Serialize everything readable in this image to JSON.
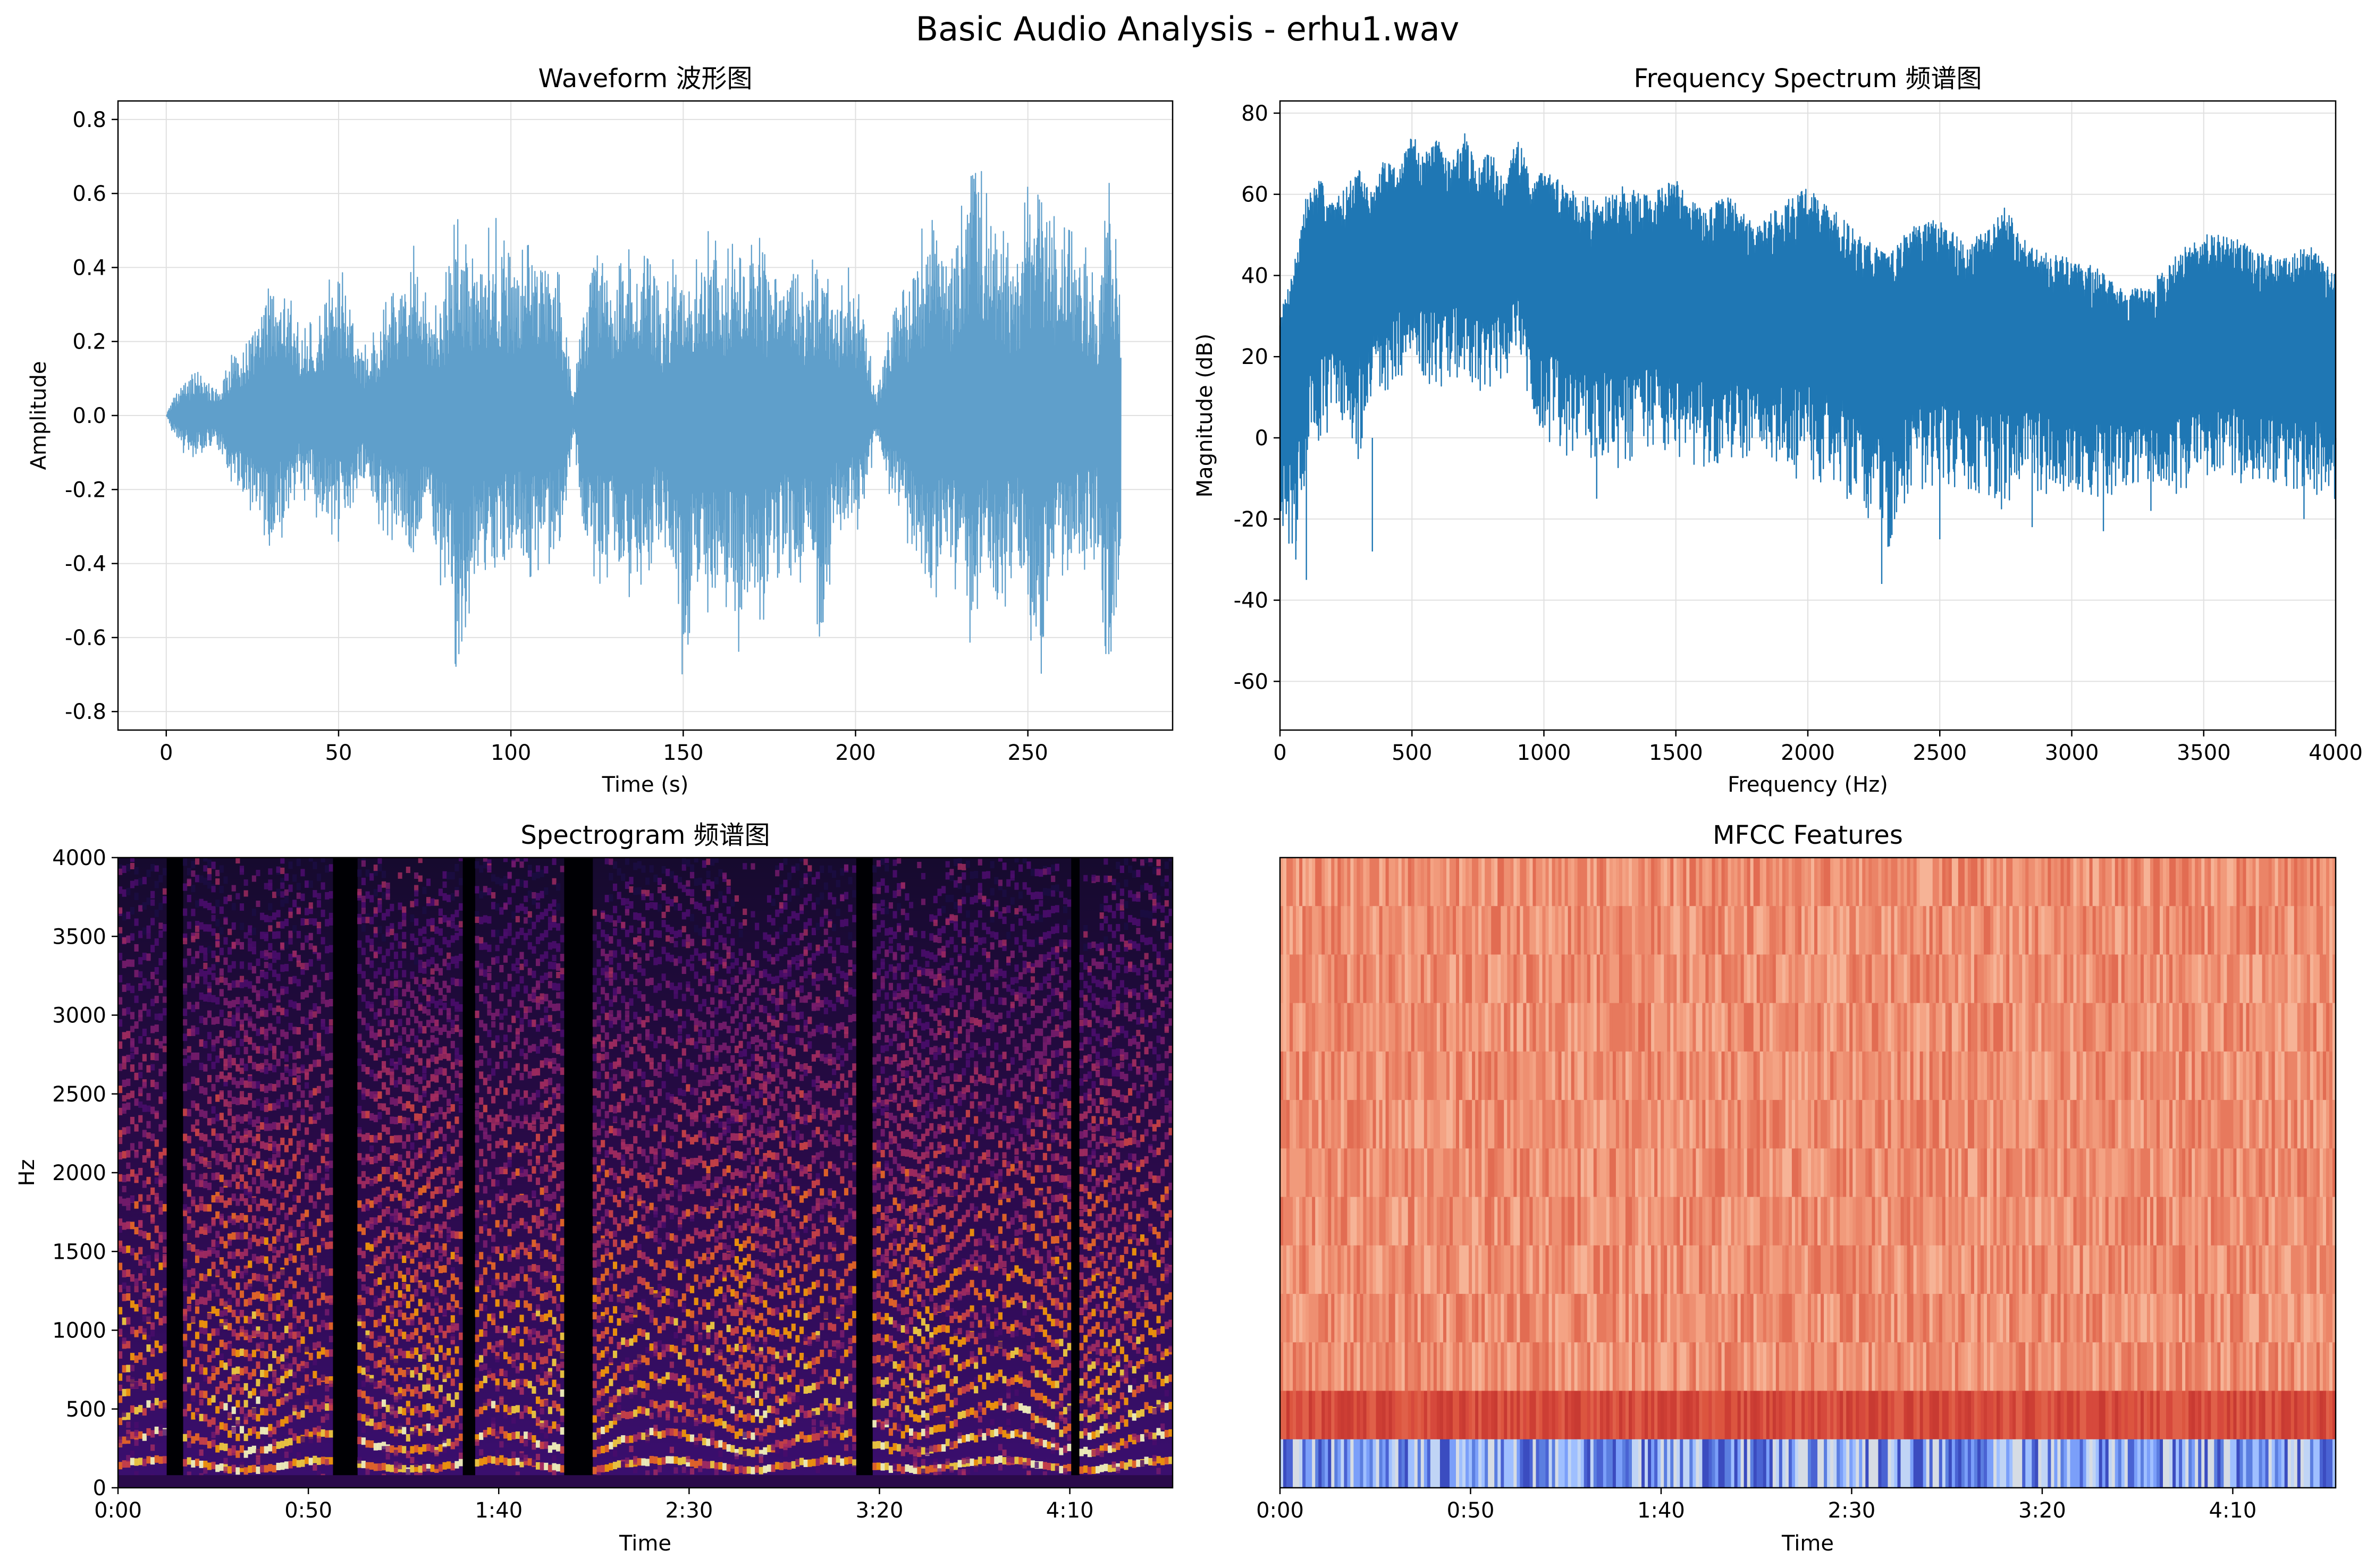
{
  "figure": {
    "title": "Basic Audio Analysis - erhu1.wav",
    "colors": {
      "waveform": "#5f9fcb",
      "spectrum": "#1f77b4",
      "grid": "#e0e0e0",
      "spectrogram_low": "#000004",
      "spectrogram_mid": "#8c2981",
      "spectrogram_high": "#fcfdbf",
      "mfcc_warm": "#ee8a6c",
      "mfcc_dark": "#d0453a",
      "mfcc_cool": "#5b7ee0"
    }
  },
  "chart_data": [
    {
      "id": "waveform",
      "type": "line",
      "title": "Waveform 波形图",
      "xlabel": "Time (s)",
      "ylabel": "Amplitude",
      "xlim": [
        -14,
        292
      ],
      "ylim": [
        -0.85,
        0.85
      ],
      "xticks": [
        0,
        50,
        100,
        150,
        200,
        250
      ],
      "xtick_labels": [
        "0",
        "50",
        "100",
        "150",
        "200",
        "250"
      ],
      "yticks": [
        -0.8,
        -0.6,
        -0.4,
        -0.2,
        0.0,
        0.2,
        0.4,
        0.6,
        0.8
      ],
      "ytick_labels": [
        "-0.8",
        "-0.6",
        "-0.4",
        "-0.2",
        "0.0",
        "0.2",
        "0.4",
        "0.6",
        "0.8"
      ],
      "grid": true,
      "duration_s": 277,
      "envelope": {
        "t": [
          0,
          2,
          5,
          10,
          14,
          20,
          28,
          30,
          35,
          38,
          44,
          50,
          54,
          57,
          62,
          66,
          72,
          76,
          82,
          84,
          86,
          90,
          95,
          100,
          105,
          110,
          114,
          118,
          121,
          125,
          130,
          135,
          140,
          144,
          148,
          150,
          153,
          157,
          162,
          166,
          170,
          173,
          178,
          182,
          186,
          190,
          194,
          198,
          202,
          206,
          210,
          214,
          218,
          222,
          226,
          230,
          234,
          238,
          242,
          246,
          250,
          254,
          258,
          262,
          266,
          270,
          274,
          277
        ],
        "upper": [
          0.0,
          0.05,
          0.1,
          0.12,
          0.08,
          0.18,
          0.3,
          0.4,
          0.35,
          0.25,
          0.3,
          0.42,
          0.3,
          0.18,
          0.25,
          0.38,
          0.46,
          0.3,
          0.4,
          0.55,
          0.48,
          0.4,
          0.55,
          0.42,
          0.46,
          0.44,
          0.38,
          0.06,
          0.32,
          0.5,
          0.38,
          0.46,
          0.42,
          0.3,
          0.46,
          0.48,
          0.4,
          0.5,
          0.44,
          0.48,
          0.58,
          0.44,
          0.4,
          0.46,
          0.36,
          0.52,
          0.3,
          0.4,
          0.3,
          0.06,
          0.25,
          0.34,
          0.46,
          0.6,
          0.46,
          0.52,
          0.76,
          0.6,
          0.52,
          0.42,
          0.62,
          0.7,
          0.52,
          0.5,
          0.48,
          0.34,
          0.66,
          0.4
        ],
        "lower": [
          0.0,
          -0.05,
          -0.1,
          -0.12,
          -0.08,
          -0.2,
          -0.3,
          -0.4,
          -0.3,
          -0.2,
          -0.28,
          -0.34,
          -0.3,
          -0.18,
          -0.3,
          -0.34,
          -0.42,
          -0.32,
          -0.55,
          -0.68,
          -0.6,
          -0.46,
          -0.5,
          -0.4,
          -0.44,
          -0.4,
          -0.4,
          -0.06,
          -0.34,
          -0.46,
          -0.42,
          -0.5,
          -0.42,
          -0.3,
          -0.58,
          -0.72,
          -0.5,
          -0.6,
          -0.5,
          -0.64,
          -0.52,
          -0.56,
          -0.42,
          -0.5,
          -0.4,
          -0.72,
          -0.3,
          -0.32,
          -0.3,
          -0.06,
          -0.22,
          -0.3,
          -0.46,
          -0.55,
          -0.38,
          -0.5,
          -0.64,
          -0.48,
          -0.58,
          -0.4,
          -0.58,
          -0.7,
          -0.5,
          -0.46,
          -0.42,
          -0.38,
          -0.78,
          -0.4
        ]
      }
    },
    {
      "id": "spectrum",
      "type": "line",
      "title": "Frequency Spectrum 频谱图",
      "xlabel": "Frequency (Hz)",
      "ylabel": "Magnitude (dB)",
      "xlim": [
        0,
        4000
      ],
      "ylim": [
        -72,
        83
      ],
      "xticks": [
        0,
        500,
        1000,
        1500,
        2000,
        2500,
        3000,
        3500,
        4000
      ],
      "xtick_labels": [
        "0",
        "500",
        "1000",
        "1500",
        "2000",
        "2500",
        "3000",
        "3500",
        "4000"
      ],
      "yticks": [
        -60,
        -40,
        -20,
        0,
        20,
        40,
        60,
        80
      ],
      "ytick_labels": [
        "-60",
        "-40",
        "-20",
        "0",
        "20",
        "40",
        "60",
        "80"
      ],
      "grid": true,
      "envelope": {
        "f": [
          0,
          50,
          100,
          150,
          200,
          250,
          300,
          350,
          400,
          450,
          500,
          550,
          600,
          650,
          700,
          750,
          800,
          850,
          900,
          950,
          1000,
          1100,
          1200,
          1300,
          1400,
          1500,
          1600,
          1700,
          1800,
          1900,
          2000,
          2100,
          2200,
          2300,
          2400,
          2500,
          2600,
          2700,
          2750,
          2800,
          2900,
          3000,
          3100,
          3200,
          3300,
          3400,
          3500,
          3600,
          3700,
          3800,
          3900,
          4000
        ],
        "upper": [
          30,
          42,
          60,
          64,
          58,
          62,
          66,
          60,
          70,
          66,
          75,
          70,
          74,
          68,
          75,
          66,
          72,
          62,
          75,
          64,
          66,
          62,
          58,
          62,
          60,
          64,
          56,
          60,
          52,
          58,
          62,
          56,
          50,
          46,
          52,
          54,
          48,
          52,
          58,
          50,
          46,
          44,
          42,
          36,
          38,
          46,
          50,
          50,
          46,
          44,
          48,
          40
        ],
        "lower": [
          -20,
          -30,
          -10,
          0,
          2,
          5,
          -10,
          8,
          10,
          15,
          12,
          14,
          12,
          15,
          13,
          10,
          12,
          14,
          20,
          5,
          0,
          -5,
          -5,
          -8,
          -2,
          -5,
          -8,
          -10,
          -8,
          -10,
          -10,
          -12,
          -18,
          -28,
          -15,
          -12,
          -15,
          -14,
          -20,
          -12,
          -15,
          -14,
          -16,
          -12,
          -12,
          -14,
          -10,
          -12,
          -10,
          -12,
          -14,
          -15
        ],
        "center": [
          20,
          18,
          30,
          34,
          32,
          34,
          36,
          36,
          40,
          42,
          42,
          42,
          42,
          42,
          42,
          40,
          40,
          40,
          44,
          36,
          34,
          32,
          28,
          30,
          28,
          30,
          26,
          28,
          24,
          26,
          26,
          24,
          18,
          16,
          20,
          22,
          18,
          20,
          22,
          18,
          18,
          16,
          14,
          12,
          12,
          16,
          18,
          18,
          16,
          16,
          16,
          14
        ]
      }
    },
    {
      "id": "spectrogram",
      "type": "heatmap",
      "title": "Spectrogram 频谱图",
      "xlabel": "Time",
      "ylabel": "Hz",
      "xlim": [
        0,
        277
      ],
      "ylim": [
        0,
        4000
      ],
      "xticks": [
        0,
        50,
        100,
        150,
        200,
        250
      ],
      "xtick_labels": [
        "0:00",
        "0:50",
        "1:40",
        "2:30",
        "3:20",
        "4:10"
      ],
      "yticks": [
        0,
        500,
        1000,
        1500,
        2000,
        2500,
        3000,
        3500,
        4000
      ],
      "ytick_labels": [
        "0",
        "500",
        "1000",
        "1500",
        "2000",
        "2500",
        "3000",
        "3500",
        "4000"
      ],
      "silent_segments_s": [
        [
          12,
          16
        ],
        [
          56,
          62
        ],
        [
          90,
          93
        ],
        [
          117,
          124
        ],
        [
          193,
          198
        ],
        [
          250,
          252
        ]
      ],
      "colormap": "magma"
    },
    {
      "id": "mfcc",
      "type": "heatmap",
      "title": "MFCC Features",
      "xlabel": "Time",
      "ylabel": "",
      "xlim": [
        0,
        277
      ],
      "xticks": [
        0,
        50,
        100,
        150,
        200,
        250
      ],
      "xtick_labels": [
        "0:00",
        "0:50",
        "1:40",
        "2:30",
        "3:20",
        "4:10"
      ],
      "coefficients": 13,
      "colormap": "coolwarm"
    }
  ]
}
